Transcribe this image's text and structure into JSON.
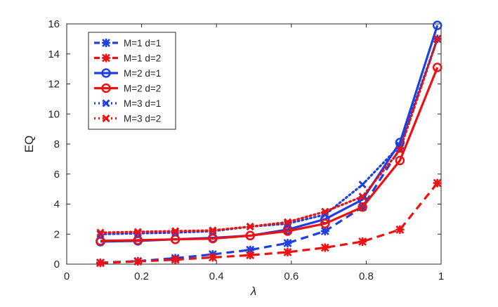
{
  "chart_data": {
    "type": "line",
    "title": "",
    "xlabel": "λ",
    "ylabel": "EQ",
    "xlim": [
      0,
      1
    ],
    "ylim": [
      0,
      16
    ],
    "xticks": [
      0,
      0.2,
      0.4,
      0.6,
      0.8,
      1
    ],
    "xtick_labels": [
      "0",
      "0.2",
      "0.4",
      "0.6",
      "0.8",
      "1"
    ],
    "yticks": [
      0,
      2,
      4,
      6,
      8,
      10,
      12,
      14,
      16
    ],
    "ytick_labels": [
      "0",
      "2",
      "4",
      "6",
      "8",
      "10",
      "12",
      "14",
      "16"
    ],
    "grid": false,
    "legend_position": "top-left",
    "x": [
      0.09,
      0.19,
      0.29,
      0.39,
      0.49,
      0.59,
      0.69,
      0.79,
      0.89,
      0.99
    ],
    "series": [
      {
        "name": "M=1 d=1",
        "color": "#1f3fe0",
        "line": "dashed",
        "marker": "asterisk",
        "values": [
          0.1,
          0.2,
          0.4,
          0.65,
          0.95,
          1.4,
          2.2,
          3.8,
          7.7,
          15.0
        ]
      },
      {
        "name": "M=1 d=2",
        "color": "#ee1111",
        "line": "dashed",
        "marker": "asterisk",
        "values": [
          0.08,
          0.18,
          0.3,
          0.45,
          0.6,
          0.8,
          1.1,
          1.5,
          2.3,
          5.4
        ]
      },
      {
        "name": "M=2 d=1",
        "color": "#1f3fe0",
        "line": "solid",
        "marker": "circle",
        "values": [
          1.5,
          1.55,
          1.65,
          1.75,
          1.9,
          2.3,
          3.0,
          4.3,
          8.1,
          15.9
        ]
      },
      {
        "name": "M=2 d=2",
        "color": "#ee1111",
        "line": "solid",
        "marker": "circle",
        "values": [
          1.55,
          1.6,
          1.65,
          1.7,
          1.9,
          2.2,
          2.7,
          3.8,
          6.9,
          13.1
        ]
      },
      {
        "name": "M=3 d=1",
        "color": "#1f3fe0",
        "line": "dotted",
        "marker": "x",
        "values": [
          2.0,
          2.05,
          2.1,
          2.2,
          2.5,
          2.7,
          3.3,
          5.3,
          7.9,
          15.0
        ]
      },
      {
        "name": "M=3 d=2",
        "color": "#ee1111",
        "line": "dotted",
        "marker": "x",
        "values": [
          2.1,
          2.15,
          2.2,
          2.25,
          2.5,
          2.8,
          3.5,
          4.5,
          7.6,
          15.0
        ]
      }
    ]
  }
}
